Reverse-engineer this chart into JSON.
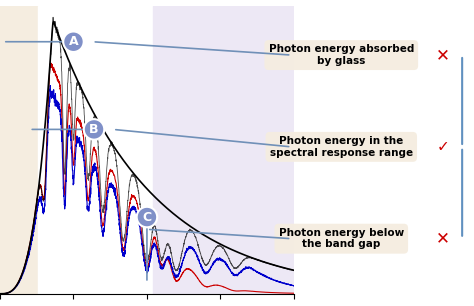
{
  "fig_width": 4.74,
  "fig_height": 3.06,
  "dpi": 100,
  "bg_color": "#ffffff",
  "plot_bg_color": "#ffffff",
  "region_A_color": "#f0e8e0",
  "region_B_color": "#ffffff",
  "region_C_color": "#e8e0f0",
  "label_A": "A",
  "label_B": "B",
  "label_C": "C",
  "text_A": "Photon energy absorbed\nby glass",
  "text_B": "Photon energy in the\nspectral response range",
  "text_C": "Photon energy below\nthe band gap",
  "circle_color": "#8090c8",
  "line_color": "#7090b8",
  "arrow_color": "#6090c0",
  "cross_color": "#cc0000",
  "check_color": "#cc0000",
  "black_curve_color": "#000000",
  "red_curve_color": "#cc0000",
  "blue_curve_color": "#0000cc"
}
